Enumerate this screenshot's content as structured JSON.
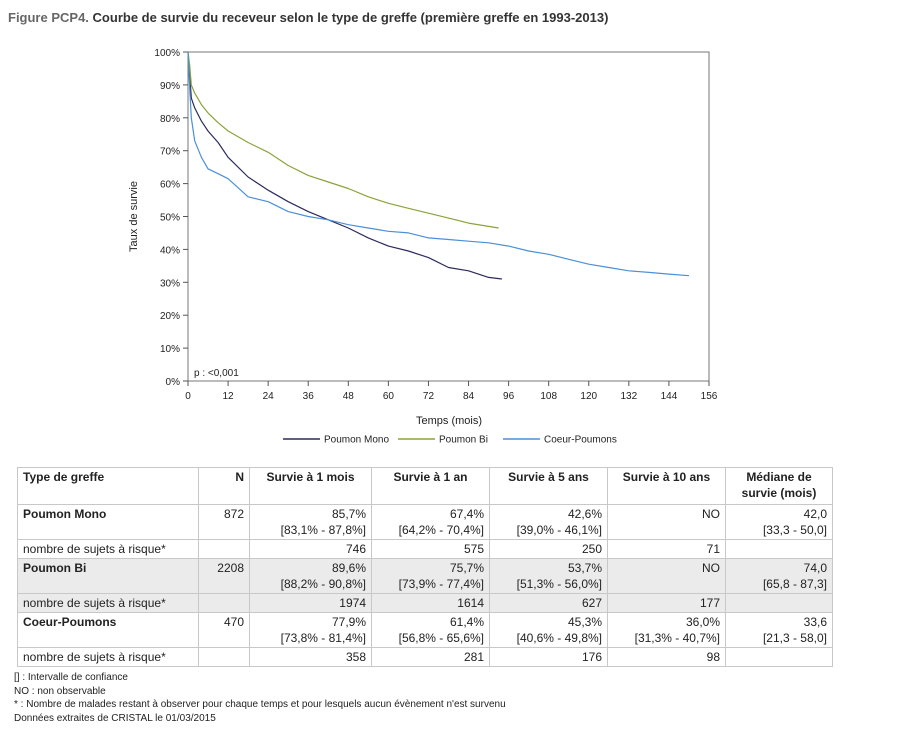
{
  "title": {
    "lead": "Figure PCP4.",
    "text": "Courbe de survie du receveur selon le type de greffe (première greffe en 1993-2013)"
  },
  "chart_data": {
    "type": "line",
    "ylabel": "Taux de survie",
    "xlabel": "Temps (mois)",
    "xlim": [
      0,
      156
    ],
    "ylim": [
      0,
      100
    ],
    "x_ticks": [
      "0",
      "12",
      "24",
      "36",
      "48",
      "60",
      "72",
      "84",
      "96",
      "108",
      "120",
      "132",
      "144",
      "156"
    ],
    "y_ticks": [
      "0%",
      "10%",
      "20%",
      "30%",
      "40%",
      "50%",
      "60%",
      "70%",
      "80%",
      "90%",
      "100%"
    ],
    "annotation": "p : <0,001",
    "legend_position": "bottom",
    "series": [
      {
        "name": "Poumon Mono",
        "color": "#2b2a5e",
        "x": [
          0,
          0.5,
          1,
          2,
          4,
          6,
          9,
          12,
          18,
          24,
          30,
          36,
          42,
          48,
          54,
          60,
          66,
          72,
          78,
          84,
          90,
          94
        ],
        "y": [
          100,
          93,
          86,
          83,
          79,
          76,
          72.5,
          68,
          62,
          58,
          54.5,
          51.5,
          49,
          46.5,
          43.5,
          41,
          39.5,
          37.5,
          34.5,
          33.5,
          31.5,
          31
        ]
      },
      {
        "name": "Poumon Bi",
        "color": "#8aa33a",
        "x": [
          0,
          0.5,
          1,
          2,
          4,
          6,
          9,
          12,
          18,
          24,
          30,
          36,
          42,
          48,
          54,
          60,
          66,
          72,
          78,
          84,
          90,
          93
        ],
        "y": [
          100,
          96,
          90,
          87.5,
          84,
          81.5,
          78.5,
          76,
          72.5,
          69.5,
          65.5,
          62.5,
          60.5,
          58.5,
          56,
          54,
          52.5,
          51,
          49.5,
          48,
          47,
          46.5
        ]
      },
      {
        "name": "Coeur-Poumons",
        "color": "#4a90d9",
        "x": [
          0,
          0.5,
          1,
          2,
          4,
          6,
          9,
          12,
          18,
          24,
          30,
          36,
          42,
          48,
          54,
          60,
          66,
          72,
          78,
          84,
          90,
          96,
          102,
          108,
          114,
          120,
          126,
          132,
          138,
          144,
          150
        ],
        "y": [
          100,
          89,
          80,
          73,
          68,
          64.5,
          63,
          61.5,
          56,
          54.5,
          51.5,
          50,
          49,
          47.5,
          46.5,
          45.5,
          45,
          43.5,
          43,
          42.5,
          42,
          41,
          39.5,
          38.5,
          37,
          35.5,
          34.5,
          33.5,
          33,
          32.5,
          32
        ]
      }
    ]
  },
  "table": {
    "headers": [
      "Type de greffe",
      "N",
      "Survie à 1 mois",
      "Survie à 1 an",
      "Survie à 5 ans",
      "Survie à 10 ans",
      "Médiane de survie (mois)"
    ],
    "rows": [
      {
        "label": "Poumon Mono",
        "n": "872",
        "m1": "85,7%",
        "m1_ci": "[83,1% - 87,8%]",
        "y1": "67,4%",
        "y1_ci": "[64,2% - 70,4%]",
        "y5": "42,6%",
        "y5_ci": "[39,0% - 46,1%]",
        "y10": "NO",
        "y10_ci": "",
        "med": "42,0",
        "med_ci": "[33,3 - 50,0]",
        "risk_label": "nombre de sujets à risque*",
        "risk": [
          "746",
          "575",
          "250",
          "71"
        ]
      },
      {
        "label": "Poumon Bi",
        "n": "2208",
        "m1": "89,6%",
        "m1_ci": "[88,2% - 90,8%]",
        "y1": "75,7%",
        "y1_ci": "[73,9% - 77,4%]",
        "y5": "53,7%",
        "y5_ci": "[51,3% - 56,0%]",
        "y10": "NO",
        "y10_ci": "",
        "med": "74,0",
        "med_ci": "[65,8 - 87,3]",
        "risk_label": "nombre de sujets à risque*",
        "risk": [
          "1974",
          "1614",
          "627",
          "177"
        ]
      },
      {
        "label": "Coeur-Poumons",
        "n": "470",
        "m1": "77,9%",
        "m1_ci": "[73,8% - 81,4%]",
        "y1": "61,4%",
        "y1_ci": "[56,8% - 65,6%]",
        "y5": "45,3%",
        "y5_ci": "[40,6% - 49,8%]",
        "y10": "36,0%",
        "y10_ci": "[31,3% - 40,7%]",
        "med": "33,6",
        "med_ci": "[21,3 - 58,0]",
        "risk_label": "nombre de sujets à risque*",
        "risk": [
          "358",
          "281",
          "176",
          "98"
        ]
      }
    ]
  },
  "notes": [
    "[] : Intervalle de confiance",
    "NO : non observable",
    "* : Nombre de malades restant à observer pour chaque temps et pour lesquels aucun évènement n'est survenu",
    "Données extraites de CRISTAL le 01/03/2015"
  ]
}
